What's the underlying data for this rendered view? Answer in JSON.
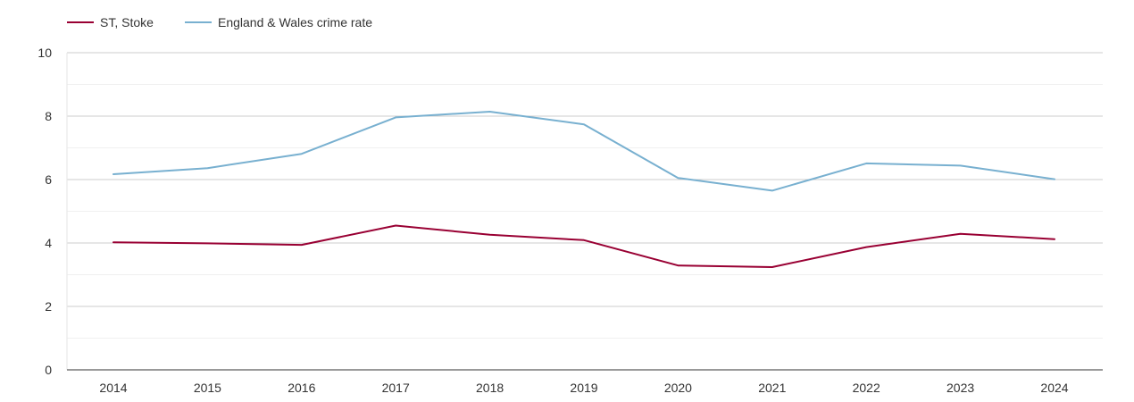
{
  "chart_data": {
    "type": "line",
    "title": "",
    "xlabel": "",
    "ylabel": "",
    "x": [
      2014,
      2015,
      2016,
      2017,
      2018,
      2019,
      2020,
      2021,
      2022,
      2023,
      2024
    ],
    "x_tick_labels": [
      "2014",
      "2015",
      "2016",
      "2017",
      "2018",
      "2019",
      "2020",
      "2021",
      "2022",
      "2023",
      "2024"
    ],
    "ylim": [
      0,
      10
    ],
    "y_ticks": [
      0,
      2,
      4,
      6,
      8,
      10
    ],
    "y_tick_labels": [
      "0",
      "2",
      "4",
      "6",
      "8",
      "10"
    ],
    "minor_gridlines": [
      1,
      3,
      5,
      7,
      9
    ],
    "grid": true,
    "legend_position": "top-left",
    "series": [
      {
        "name": "ST, Stoke",
        "color": "#990033",
        "values": [
          4.02,
          3.99,
          3.94,
          4.55,
          4.26,
          4.09,
          3.29,
          3.24,
          3.87,
          4.29,
          4.12
        ]
      },
      {
        "name": "England & Wales crime rate",
        "color": "#78b0d0",
        "values": [
          6.17,
          6.36,
          6.81,
          7.96,
          8.14,
          7.74,
          6.05,
          5.65,
          6.51,
          6.44,
          6.01
        ]
      }
    ]
  }
}
